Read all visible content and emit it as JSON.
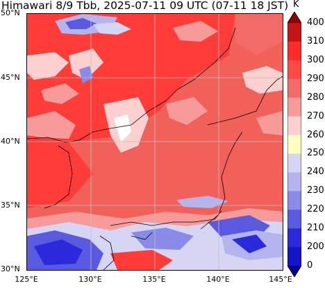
{
  "title": "Himawari 8/9 Tbb, 2025-07-11 09 UTC (07-11 18 JST)",
  "map": {
    "lat_labels": [
      "50°N",
      "45°N",
      "40°N",
      "35°N",
      "30°N"
    ],
    "lon_labels": [
      "125°E",
      "130°E",
      "135°E",
      "140°E",
      "145°E"
    ],
    "grid": true
  },
  "colorbar": {
    "unit": "K",
    "ticks": [
      "400",
      "310",
      "300",
      "290",
      "280",
      "270",
      "260",
      "250",
      "240",
      "230",
      "220",
      "210",
      "200",
      "0"
    ],
    "colors": [
      "#8b0000",
      "#c41414",
      "#ff2a2a",
      "#ff4a44",
      "#f26b68",
      "#f79b9a",
      "#fbd0cf",
      "#ffffc0",
      "#d6d6f4",
      "#b4b4ee",
      "#8a8ae8",
      "#5a5ae0",
      "#2a2adc",
      "#1414c8",
      "#00008c"
    ]
  }
}
